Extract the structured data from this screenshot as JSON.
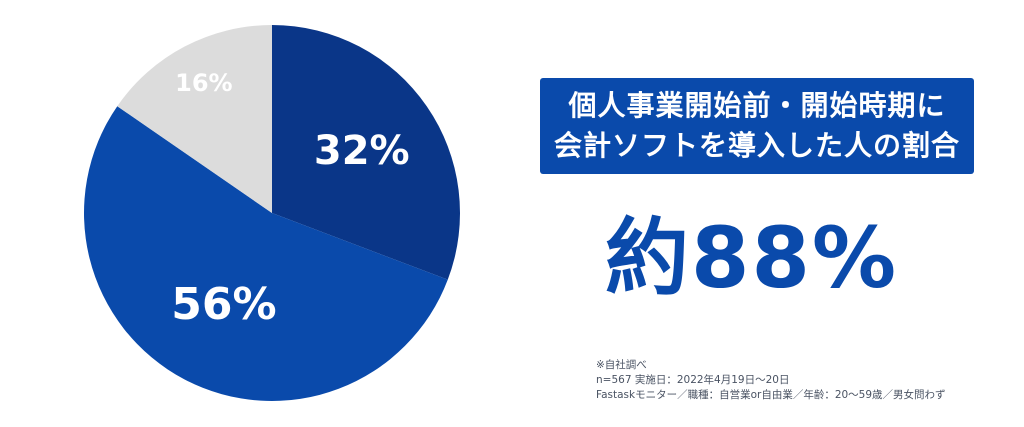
{
  "chart_data": {
    "type": "pie",
    "slices": [
      {
        "label": "32%",
        "value": 32,
        "color": "#0a3688"
      },
      {
        "label": "56%",
        "value": 56,
        "color": "#0a4aab"
      },
      {
        "label": "16%",
        "value": 16,
        "color": "#dcdcdc"
      }
    ]
  },
  "headline": {
    "line1": "個人事業開始前・開始時期に",
    "line2": "会計ソフトを導入した人の割合"
  },
  "big_stat": "約88%",
  "footnote": {
    "line1": "※自社調べ",
    "line2": "n=567 実施日：2022年4月19日〜20日",
    "line3": "Fastaskモニター／職種：自営業or自由業／年齢：20〜59歳／男女問わず"
  }
}
